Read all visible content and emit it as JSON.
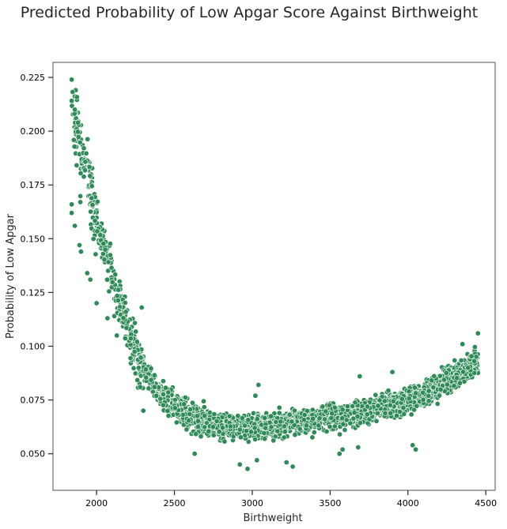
{
  "chart_data": {
    "type": "scatter",
    "title": "Predicted Probability of Low Apgar Score Against Birthweight",
    "xlabel": "Birthweight",
    "ylabel": "Probability of Low Apgar",
    "xlim": [
      1720,
      4560
    ],
    "ylim": [
      0.033,
      0.232
    ],
    "xticks": [
      2000,
      2500,
      3000,
      3500,
      4000,
      4500
    ],
    "yticks": [
      0.05,
      0.075,
      0.1,
      0.125,
      0.15,
      0.175,
      0.2,
      0.225
    ],
    "ytick_labels": [
      "0.050",
      "0.075",
      "0.100",
      "0.125",
      "0.150",
      "0.175",
      "0.200",
      "0.225"
    ],
    "grid": false,
    "legend": "none",
    "marker_color": "#2e8b57",
    "marker_edge_color": "#ffffff",
    "x_range_of_points": [
      1840,
      4450
    ],
    "trend": [
      {
        "x": 1840,
        "y": 0.215
      },
      {
        "x": 1900,
        "y": 0.19
      },
      {
        "x": 2000,
        "y": 0.16
      },
      {
        "x": 2100,
        "y": 0.132
      },
      {
        "x": 2200,
        "y": 0.108
      },
      {
        "x": 2300,
        "y": 0.09
      },
      {
        "x": 2400,
        "y": 0.079
      },
      {
        "x": 2500,
        "y": 0.072
      },
      {
        "x": 2600,
        "y": 0.068
      },
      {
        "x": 2700,
        "y": 0.065
      },
      {
        "x": 2800,
        "y": 0.063
      },
      {
        "x": 2900,
        "y": 0.0625
      },
      {
        "x": 3000,
        "y": 0.0625
      },
      {
        "x": 3100,
        "y": 0.063
      },
      {
        "x": 3200,
        "y": 0.064
      },
      {
        "x": 3300,
        "y": 0.065
      },
      {
        "x": 3400,
        "y": 0.066
      },
      {
        "x": 3500,
        "y": 0.067
      },
      {
        "x": 3600,
        "y": 0.068
      },
      {
        "x": 3700,
        "y": 0.069
      },
      {
        "x": 3800,
        "y": 0.071
      },
      {
        "x": 3900,
        "y": 0.073
      },
      {
        "x": 4000,
        "y": 0.075
      },
      {
        "x": 4100,
        "y": 0.078
      },
      {
        "x": 4200,
        "y": 0.082
      },
      {
        "x": 4300,
        "y": 0.086
      },
      {
        "x": 4400,
        "y": 0.091
      },
      {
        "x": 4450,
        "y": 0.094
      }
    ],
    "notable_points": [
      {
        "x": 1840,
        "y": 0.224
      },
      {
        "x": 1840,
        "y": 0.162
      },
      {
        "x": 1840,
        "y": 0.166
      },
      {
        "x": 1860,
        "y": 0.156
      },
      {
        "x": 1880,
        "y": 0.204
      },
      {
        "x": 1890,
        "y": 0.147
      },
      {
        "x": 1900,
        "y": 0.144
      },
      {
        "x": 1940,
        "y": 0.134
      },
      {
        "x": 1960,
        "y": 0.131
      },
      {
        "x": 2000,
        "y": 0.12
      },
      {
        "x": 2070,
        "y": 0.113
      },
      {
        "x": 2130,
        "y": 0.105
      },
      {
        "x": 2300,
        "y": 0.07
      },
      {
        "x": 2290,
        "y": 0.118
      },
      {
        "x": 2630,
        "y": 0.05
      },
      {
        "x": 2920,
        "y": 0.045
      },
      {
        "x": 2970,
        "y": 0.043
      },
      {
        "x": 3030,
        "y": 0.047
      },
      {
        "x": 3040,
        "y": 0.082
      },
      {
        "x": 3020,
        "y": 0.077
      },
      {
        "x": 3220,
        "y": 0.046
      },
      {
        "x": 3260,
        "y": 0.044
      },
      {
        "x": 3560,
        "y": 0.05
      },
      {
        "x": 3580,
        "y": 0.052
      },
      {
        "x": 3680,
        "y": 0.053
      },
      {
        "x": 3690,
        "y": 0.086
      },
      {
        "x": 3900,
        "y": 0.088
      },
      {
        "x": 4030,
        "y": 0.054
      },
      {
        "x": 4050,
        "y": 0.052
      },
      {
        "x": 4350,
        "y": 0.101
      },
      {
        "x": 4450,
        "y": 0.106
      }
    ]
  }
}
